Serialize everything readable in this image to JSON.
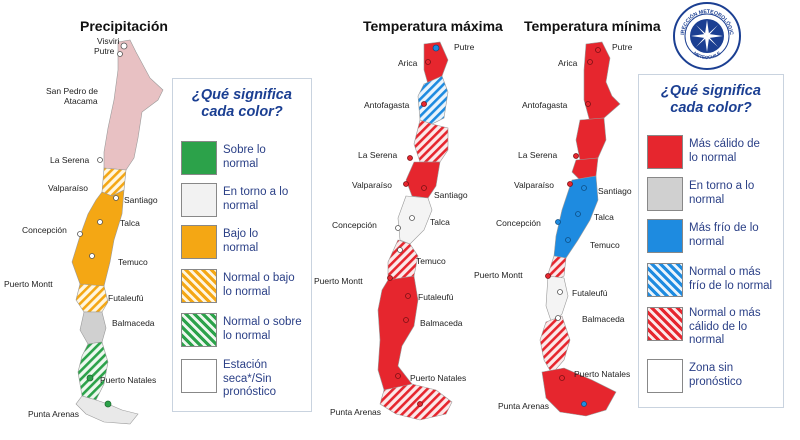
{
  "titles": {
    "precip": "Precipitación",
    "tmax": "Temperatura máxima",
    "tmin": "Temperatura mínima"
  },
  "logo": {
    "name": "DIRECCIÓN METEOROLÓGICA",
    "sub": "METEOCHILE"
  },
  "colors": {
    "green": "#2ca24a",
    "gray": "#d0d0d0",
    "white": "#f2f2f2",
    "orange": "#f4a714",
    "pink": "#e8c1c3",
    "red": "#e6262e",
    "blue": "#1e8be0",
    "text_blue": "#1b3f92"
  },
  "precip_map": {
    "cities": [
      "Visviri",
      "Putre",
      "San Pedro de",
      "Atacama",
      "La Serena",
      "Valparaíso",
      "Santiago",
      "Talca",
      "Concepción",
      "Temuco",
      "Puerto Montt",
      "Futaleufú",
      "Balmaceda",
      "Puerto Natales",
      "Punta Arenas"
    ]
  },
  "tmax_map": {
    "cities": [
      "Putre",
      "Arica",
      "Antofagasta",
      "La Serena",
      "Valparaíso",
      "Santiago",
      "Talca",
      "Concepción",
      "Temuco",
      "Puerto Montt",
      "Futaleufú",
      "Balmaceda",
      "Puerto Natales",
      "Punta Arenas"
    ]
  },
  "tmin_map": {
    "cities": [
      "Putre",
      "Arica",
      "Antofagasta",
      "La Serena",
      "Valparaíso",
      "Santiago",
      "Talca",
      "Concepción",
      "Temuco",
      "Puerto Montt",
      "Futaleufú",
      "Balmaceda",
      "Puerto Natales",
      "Punta Arenas"
    ]
  },
  "legend_precip": {
    "question_1": "¿Qué significa",
    "question_2": "cada color?",
    "items": [
      {
        "l1": "Sobre lo",
        "l2": "normal",
        "swatch": "green"
      },
      {
        "l1": "En torno a lo",
        "l2": "normal",
        "swatch": "white"
      },
      {
        "l1": "Bajo lo",
        "l2": "normal",
        "swatch": "orange"
      },
      {
        "l1": "Normal o bajo",
        "l2": "lo normal",
        "swatch": "orange-hatch"
      },
      {
        "l1": "Normal o sobre",
        "l2": "lo normal",
        "swatch": "green-hatch"
      },
      {
        "l1": "Estación",
        "l2": "seca*/Sin",
        "l3": "pronóstico",
        "swatch": "empty"
      }
    ]
  },
  "legend_temp": {
    "question_1": "¿Qué significa",
    "question_2": "cada color?",
    "items": [
      {
        "l1": "Más cálido de",
        "l2": "lo normal",
        "swatch": "red"
      },
      {
        "l1": "En torno a lo",
        "l2": "normal",
        "swatch": "gray"
      },
      {
        "l1": "Más frío de lo",
        "l2": "normal",
        "swatch": "blue"
      },
      {
        "l1": "Normal o más",
        "l2": "frío de lo normal",
        "swatch": "blue-hatch"
      },
      {
        "l1": "Normal o más",
        "l2": "cálido de lo",
        "l3": "normal",
        "swatch": "red-hatch"
      },
      {
        "l1": "Zona sin",
        "l2": "pronóstico",
        "swatch": "empty"
      }
    ]
  }
}
